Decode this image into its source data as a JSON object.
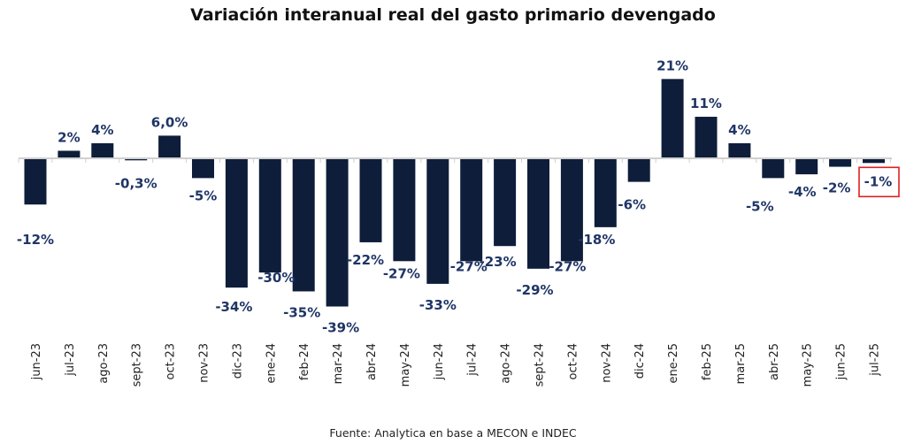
{
  "chart_data": {
    "type": "bar",
    "title": "Variación interanual real del gasto primario devengado",
    "xlabel": "",
    "ylabel": "",
    "ylim": [
      -45,
      25
    ],
    "grid": false,
    "legend": "none",
    "categories": [
      "jun-23",
      "jul-23",
      "ago-23",
      "sept-23",
      "oct-23",
      "nov-23",
      "dic-23",
      "ene-24",
      "feb-24",
      "mar-24",
      "abr-24",
      "may-24",
      "jun-24",
      "jul-24",
      "ago-24",
      "sept-24",
      "oct-24",
      "nov-24",
      "dic-24",
      "ene-25",
      "feb-25",
      "mar-25",
      "abr-25",
      "may-25",
      "jun-25",
      "jul-25"
    ],
    "values": [
      -12,
      2,
      4,
      -0.3,
      6.0,
      -5,
      -34,
      -30,
      -35,
      -39,
      -22,
      -27,
      -33,
      -27,
      -23,
      -29,
      -27,
      -18,
      -6,
      21,
      11,
      4,
      -5,
      -4,
      -2,
      -1
    ],
    "data_labels": [
      "-12%",
      "2%",
      "4%",
      "-0,3%",
      "6,0%",
      "-5%",
      "-34%",
      "-30%",
      "-35%",
      "-39%",
      "-22%",
      "-27%",
      "-33%",
      "-27%",
      "-23%",
      "-29%",
      "-27%",
      "-18%",
      "-6%",
      "21%",
      "11%",
      "4%",
      "-5%",
      "-4%",
      "-2%",
      "-1%"
    ],
    "highlighted_label": "-1%",
    "source": "Fuente: Analytica en base a MECON e INDEC",
    "colors": {
      "bar": "#0e1d3a",
      "label": "#1f3566",
      "axis": "#d0d0d0",
      "highlight_box": "#e02020"
    }
  }
}
